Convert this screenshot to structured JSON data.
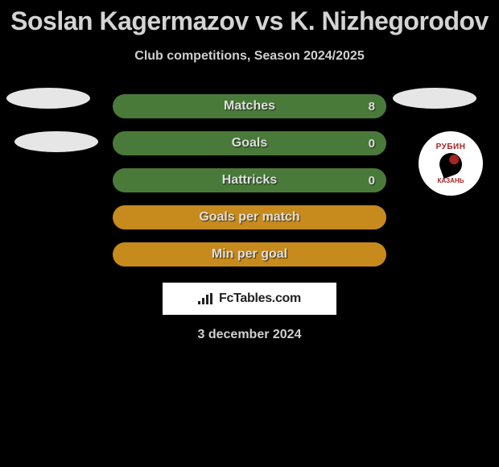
{
  "header": {
    "title": "Soslan Kagermazov vs K. Nizhegorodov",
    "subtitle": "Club competitions, Season 2024/2025"
  },
  "stats": [
    {
      "label": "Matches",
      "value_right": "8",
      "bg": "#4a7a3a",
      "label_color": "#e0e0e0"
    },
    {
      "label": "Goals",
      "value_right": "0",
      "bg": "#4a7a3a",
      "label_color": "#e0e0e0"
    },
    {
      "label": "Hattricks",
      "value_right": "0",
      "bg": "#4a7a3a",
      "label_color": "#e0e0e0"
    },
    {
      "label": "Goals per match",
      "value_right": "",
      "bg": "#c68a1d",
      "label_color": "#ffffff"
    },
    {
      "label": "Min per goal",
      "value_right": "",
      "bg": "#c68a1d",
      "label_color": "#ffffff"
    }
  ],
  "club_logo": {
    "top_text": "РУБИН",
    "bottom_text": "КАЗАНЬ",
    "ring_color": "#ffffff",
    "text_color": "#a62424"
  },
  "brand": {
    "text": "FcTables.com"
  },
  "date": "3 december 2024",
  "colors": {
    "page_bg": "#000000",
    "text_primary": "#d4d4d4",
    "text_secondary": "#cfcfcf",
    "stat_green": "#4a7a3a",
    "stat_orange": "#c68a1d",
    "ellipse": "#e6e6e6"
  }
}
